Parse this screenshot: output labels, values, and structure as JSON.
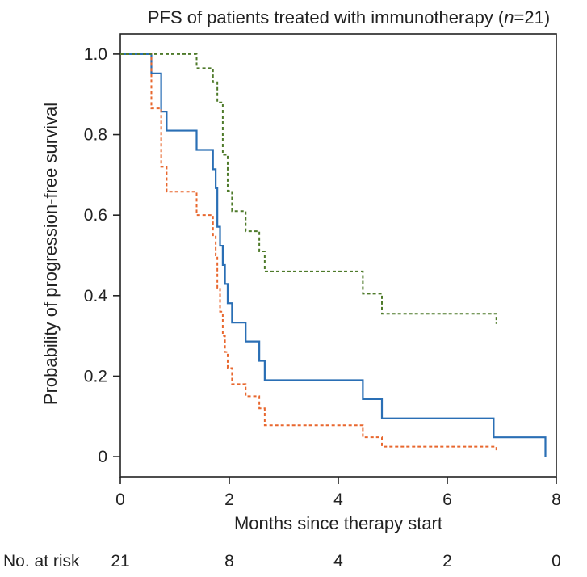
{
  "chart_data": {
    "type": "line",
    "title": "PFS of patients treated with immunotherapy (n=21)",
    "title_parts": {
      "prefix": "PFS of patients treated with immunotherapy (",
      "n_symbol": "n",
      "suffix": "=21)"
    },
    "xlabel": "Months since therapy start",
    "ylabel": "Probability of progression-free survival",
    "xlim": [
      0,
      8
    ],
    "ylim": [
      -0.05,
      1.05
    ],
    "xticks": [
      0,
      2,
      4,
      6,
      8
    ],
    "xtick_labels": [
      "0",
      "2",
      "4",
      "6",
      "8"
    ],
    "yticks": [
      0,
      0.2,
      0.4,
      0.6,
      0.8,
      1.0
    ],
    "ytick_labels": [
      "0",
      "0.2",
      "0.4",
      "0.6",
      "0.8",
      "1.0"
    ],
    "grid": false,
    "colors": {
      "main": "#2a6fb5",
      "lower": "#e8672e",
      "upper": "#4e7a2a",
      "axis": "#222222"
    },
    "series": [
      {
        "style": "solid",
        "x": [
          0,
          0.57,
          0.75,
          0.85,
          1.4,
          1.7,
          1.75,
          1.78,
          1.83,
          1.88,
          1.92,
          1.97,
          2.05,
          2.3,
          2.55,
          2.65,
          4.45,
          4.8,
          6.85,
          7.8
        ],
        "y": [
          1.0,
          0.952,
          0.857,
          0.81,
          0.762,
          0.714,
          0.667,
          0.571,
          0.524,
          0.476,
          0.429,
          0.381,
          0.333,
          0.286,
          0.238,
          0.19,
          0.143,
          0.095,
          0.048,
          0.0
        ]
      },
      {
        "style": "dashed",
        "x": [
          0,
          0.57,
          0.75,
          0.85,
          1.4,
          1.7,
          1.75,
          1.78,
          1.83,
          1.88,
          1.92,
          1.97,
          2.05,
          2.3,
          2.55,
          2.65,
          4.45,
          4.8,
          6.9
        ],
        "y": [
          1.0,
          0.865,
          0.72,
          0.658,
          0.6,
          0.55,
          0.5,
          0.42,
          0.36,
          0.3,
          0.26,
          0.22,
          0.18,
          0.15,
          0.12,
          0.078,
          0.048,
          0.025,
          0.01
        ]
      },
      {
        "style": "dotted",
        "x": [
          0,
          1.4,
          1.7,
          1.78,
          1.88,
          1.97,
          2.05,
          2.3,
          2.55,
          2.65,
          4.45,
          4.8,
          6.9
        ],
        "y": [
          1.0,
          0.965,
          0.93,
          0.88,
          0.75,
          0.66,
          0.61,
          0.56,
          0.51,
          0.46,
          0.405,
          0.355,
          0.33
        ]
      }
    ],
    "risk_table": {
      "label": "No. at risk",
      "times": [
        0,
        2,
        4,
        6,
        8
      ],
      "counts": [
        "21",
        "8",
        "4",
        "2",
        "0"
      ]
    }
  }
}
